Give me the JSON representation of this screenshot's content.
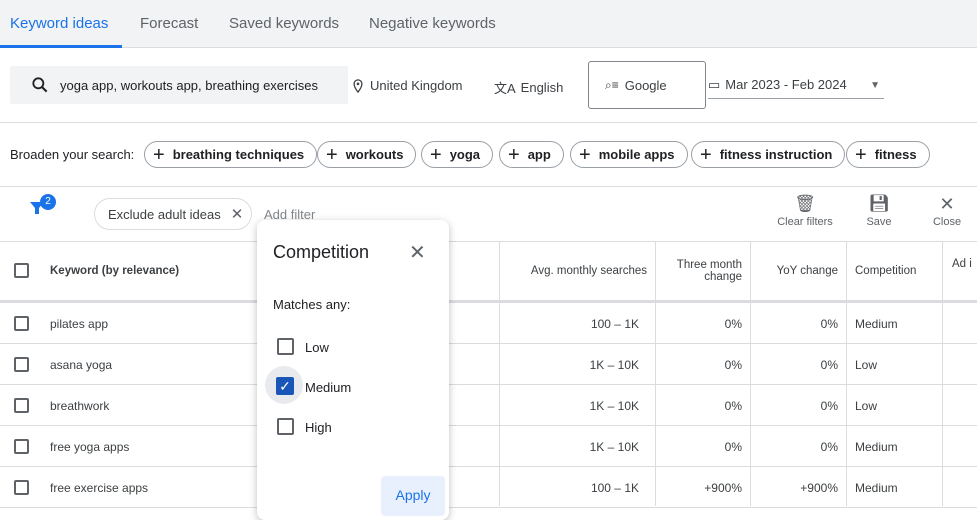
{
  "tabs": [
    {
      "label": "Keyword ideas",
      "active": true
    },
    {
      "label": "Forecast"
    },
    {
      "label": "Saved keywords"
    },
    {
      "label": "Negative keywords"
    }
  ],
  "search": {
    "value": "yoga app, workouts app, breathing exercises",
    "location": "United Kingdom",
    "language": "English",
    "network": "Google",
    "date_range": "Mar 2023 - Feb 2024"
  },
  "broaden": {
    "label": "Broaden your search:",
    "chips": [
      "breathing techniques",
      "workouts",
      "yoga",
      "app",
      "mobile apps",
      "fitness instruction",
      "fitness"
    ]
  },
  "filters": {
    "count": "2",
    "chip": "Exclude adult ideas",
    "add_filter": "Add filter",
    "clear": "Clear filters",
    "save": "Save",
    "close": "Close"
  },
  "table": {
    "headers": [
      "Keyword (by relevance)",
      "Avg. monthly searches",
      "Three month change",
      "YoY change",
      "Competition",
      "Ad i"
    ],
    "rows": [
      [
        "pilates app",
        "100 – 1K",
        "0%",
        "0%",
        "Medium"
      ],
      [
        "asana yoga",
        "1K – 10K",
        "0%",
        "0%",
        "Low"
      ],
      [
        "breathwork",
        "1K – 10K",
        "0%",
        "0%",
        "Low"
      ],
      [
        "free yoga apps",
        "1K – 10K",
        "0%",
        "0%",
        "Medium"
      ],
      [
        "free exercise apps",
        "100 – 1K",
        "+900%",
        "+900%",
        "Medium"
      ]
    ]
  },
  "popup": {
    "title": "Competition",
    "matches": "Matches any:",
    "options": [
      {
        "label": "Low",
        "checked": false
      },
      {
        "label": "Medium",
        "checked": true
      },
      {
        "label": "High",
        "checked": false
      }
    ],
    "apply": "Apply"
  },
  "colors": {
    "accent": "#1a73e8"
  }
}
